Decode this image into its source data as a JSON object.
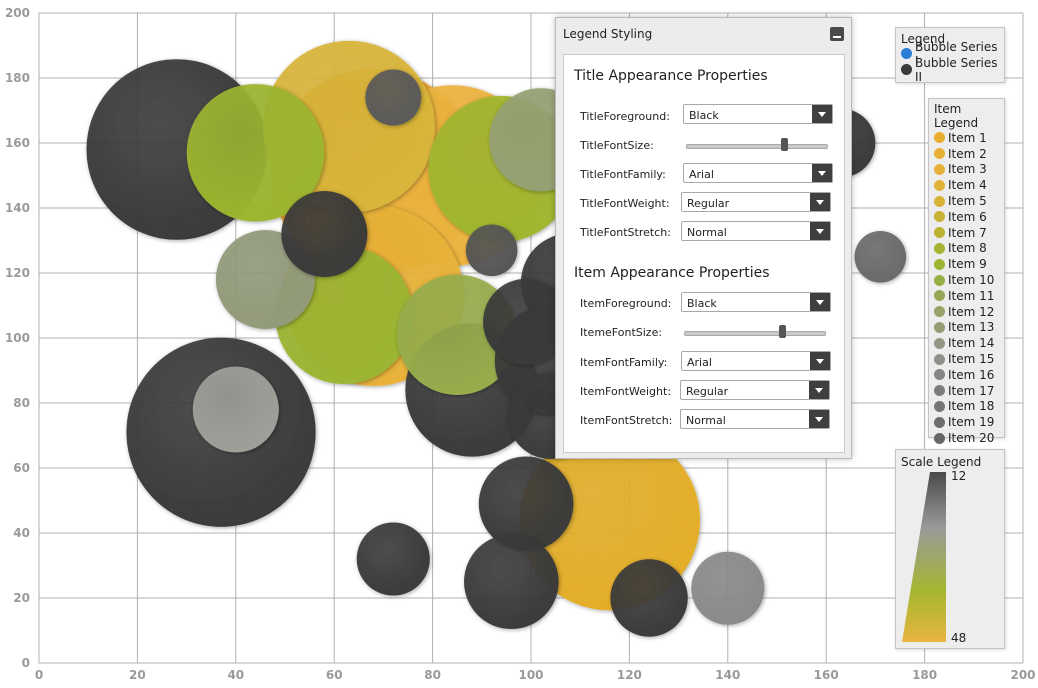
{
  "chart_data": {
    "type": "bubble",
    "xlim": [
      0,
      200
    ],
    "ylim": [
      0,
      200
    ],
    "x_ticks": [
      "0",
      "20",
      "40",
      "60",
      "80",
      "100",
      "120",
      "140",
      "160",
      "180",
      "200"
    ],
    "y_ticks": [
      "0",
      "20",
      "40",
      "60",
      "80",
      "100",
      "120",
      "140",
      "160",
      "180",
      "200"
    ],
    "grid": true,
    "series": [
      {
        "name": "Bubble Series I",
        "points": [
          {
            "x": 68,
            "y": 151,
            "size": 48,
            "color": "#efa62a"
          },
          {
            "x": 84,
            "y": 150,
            "size": 42,
            "color": "#edb43f"
          },
          {
            "x": 63,
            "y": 165,
            "size": 40,
            "color": "#d9b53a"
          },
          {
            "x": 68,
            "y": 113,
            "size": 42,
            "color": "#e9b238"
          },
          {
            "x": 116,
            "y": 44,
            "size": 42,
            "color": "#e4ae26"
          },
          {
            "x": 44,
            "y": 157,
            "size": 32,
            "color": "#9cb530"
          },
          {
            "x": 94,
            "y": 152,
            "size": 34,
            "color": "#a1b630"
          },
          {
            "x": 62,
            "y": 107,
            "size": 32,
            "color": "#9cb532"
          },
          {
            "x": 85,
            "y": 101,
            "size": 28,
            "color": "#98ad4c"
          },
          {
            "x": 102,
            "y": 161,
            "size": 24,
            "color": "#96a174"
          },
          {
            "x": 46,
            "y": 118,
            "size": 23,
            "color": "#929a7a"
          },
          {
            "x": 40,
            "y": 78,
            "size": 20,
            "color": "#a0a09a"
          },
          {
            "x": 140,
            "y": 23,
            "size": 17,
            "color": "#8a8a8a"
          },
          {
            "x": 171,
            "y": 125,
            "size": 12,
            "color": "#6a6a6a"
          }
        ]
      },
      {
        "name": "Bubble Series II",
        "points": [
          {
            "x": 28,
            "y": 158,
            "size": 42,
            "color": "#3a3a3a"
          },
          {
            "x": 37,
            "y": 71,
            "size": 44,
            "color": "#3a3a3a"
          },
          {
            "x": 58,
            "y": 132,
            "size": 20,
            "color": "#3a3a3a"
          },
          {
            "x": 72,
            "y": 174,
            "size": 13,
            "color": "#5a5a5a"
          },
          {
            "x": 92,
            "y": 127,
            "size": 12,
            "color": "#555555"
          },
          {
            "x": 88,
            "y": 84,
            "size": 31,
            "color": "#3a3a3a"
          },
          {
            "x": 99,
            "y": 105,
            "size": 20,
            "color": "#3a3a3a"
          },
          {
            "x": 104,
            "y": 93,
            "size": 26,
            "color": "#3a3a3a"
          },
          {
            "x": 104,
            "y": 76,
            "size": 20,
            "color": "#3a3a3a"
          },
          {
            "x": 108,
            "y": 117,
            "size": 23,
            "color": "#3a3a3a"
          },
          {
            "x": 99,
            "y": 49,
            "size": 22,
            "color": "#3a3a3a"
          },
          {
            "x": 96,
            "y": 25,
            "size": 22,
            "color": "#3a3a3a"
          },
          {
            "x": 72,
            "y": 32,
            "size": 17,
            "color": "#3a3a3a"
          },
          {
            "x": 124,
            "y": 20,
            "size": 18,
            "color": "#3a3a3a"
          },
          {
            "x": 163,
            "y": 160,
            "size": 16,
            "color": "#3a3a3a"
          }
        ]
      }
    ]
  },
  "legend": {
    "title": "Legend",
    "items": [
      {
        "label": "Bubble Series I",
        "color": "#2b7fd9"
      },
      {
        "label": "Bubble Series II",
        "color": "#3a3a3a"
      }
    ]
  },
  "item_legend": {
    "title": "Item Legend",
    "items": [
      {
        "label": "Item 1",
        "color": "#e9ae2e"
      },
      {
        "label": "Item 2",
        "color": "#e7b035"
      },
      {
        "label": "Item 3",
        "color": "#e5b13a"
      },
      {
        "label": "Item 4",
        "color": "#e0b236"
      },
      {
        "label": "Item 5",
        "color": "#d6b236"
      },
      {
        "label": "Item 6",
        "color": "#c8b234"
      },
      {
        "label": "Item 7",
        "color": "#bcb232"
      },
      {
        "label": "Item 8",
        "color": "#a6b432"
      },
      {
        "label": "Item 9",
        "color": "#9cb433"
      },
      {
        "label": "Item 10",
        "color": "#97ae44"
      },
      {
        "label": "Item 11",
        "color": "#97a758"
      },
      {
        "label": "Item 12",
        "color": "#96a267"
      },
      {
        "label": "Item 13",
        "color": "#949c74"
      },
      {
        "label": "Item 14",
        "color": "#939682"
      },
      {
        "label": "Item 15",
        "color": "#8f8f8c"
      },
      {
        "label": "Item 16",
        "color": "#868686"
      },
      {
        "label": "Item 17",
        "color": "#7d7d7d"
      },
      {
        "label": "Item 18",
        "color": "#757575"
      },
      {
        "label": "Item 19",
        "color": "#6d6d6d"
      },
      {
        "label": "Item 20",
        "color": "#666666"
      }
    ]
  },
  "scale_legend": {
    "title": "Scale Legend",
    "max_label": "12",
    "min_label": "48",
    "gradient": [
      "#4a4a4a",
      "#9a9a9a",
      "#a5b630",
      "#e9b540"
    ]
  },
  "styling_window": {
    "title": "Legend Styling",
    "title_section": {
      "heading": "Title Appearance Properties",
      "foreground_label": "TitleForeground:",
      "foreground_value": "Black",
      "fontsize_label": "TitleFontSize:",
      "fontsize_level": 0.7,
      "fontfamily_label": "TitleFontFamily:",
      "fontfamily_value": "Arial",
      "fontweight_label": "TitleFontWeight:",
      "fontweight_value": "Regular",
      "fontstretch_label": "TitleFontStretch:",
      "fontstretch_value": "Normal"
    },
    "item_section": {
      "heading": "Item Appearance Properties",
      "foreground_label": "ItemForeground:",
      "foreground_value": "Black",
      "fontsize_label": "ItemeFontSize:",
      "fontsize_level": 0.7,
      "fontfamily_label": "ItemFontFamily:",
      "fontfamily_value": "Arial",
      "fontweight_label": "ItemFontWeight:",
      "fontweight_value": "Regular",
      "fontstretch_label": "ItemFontStretch:",
      "fontstretch_value": "Normal"
    }
  }
}
